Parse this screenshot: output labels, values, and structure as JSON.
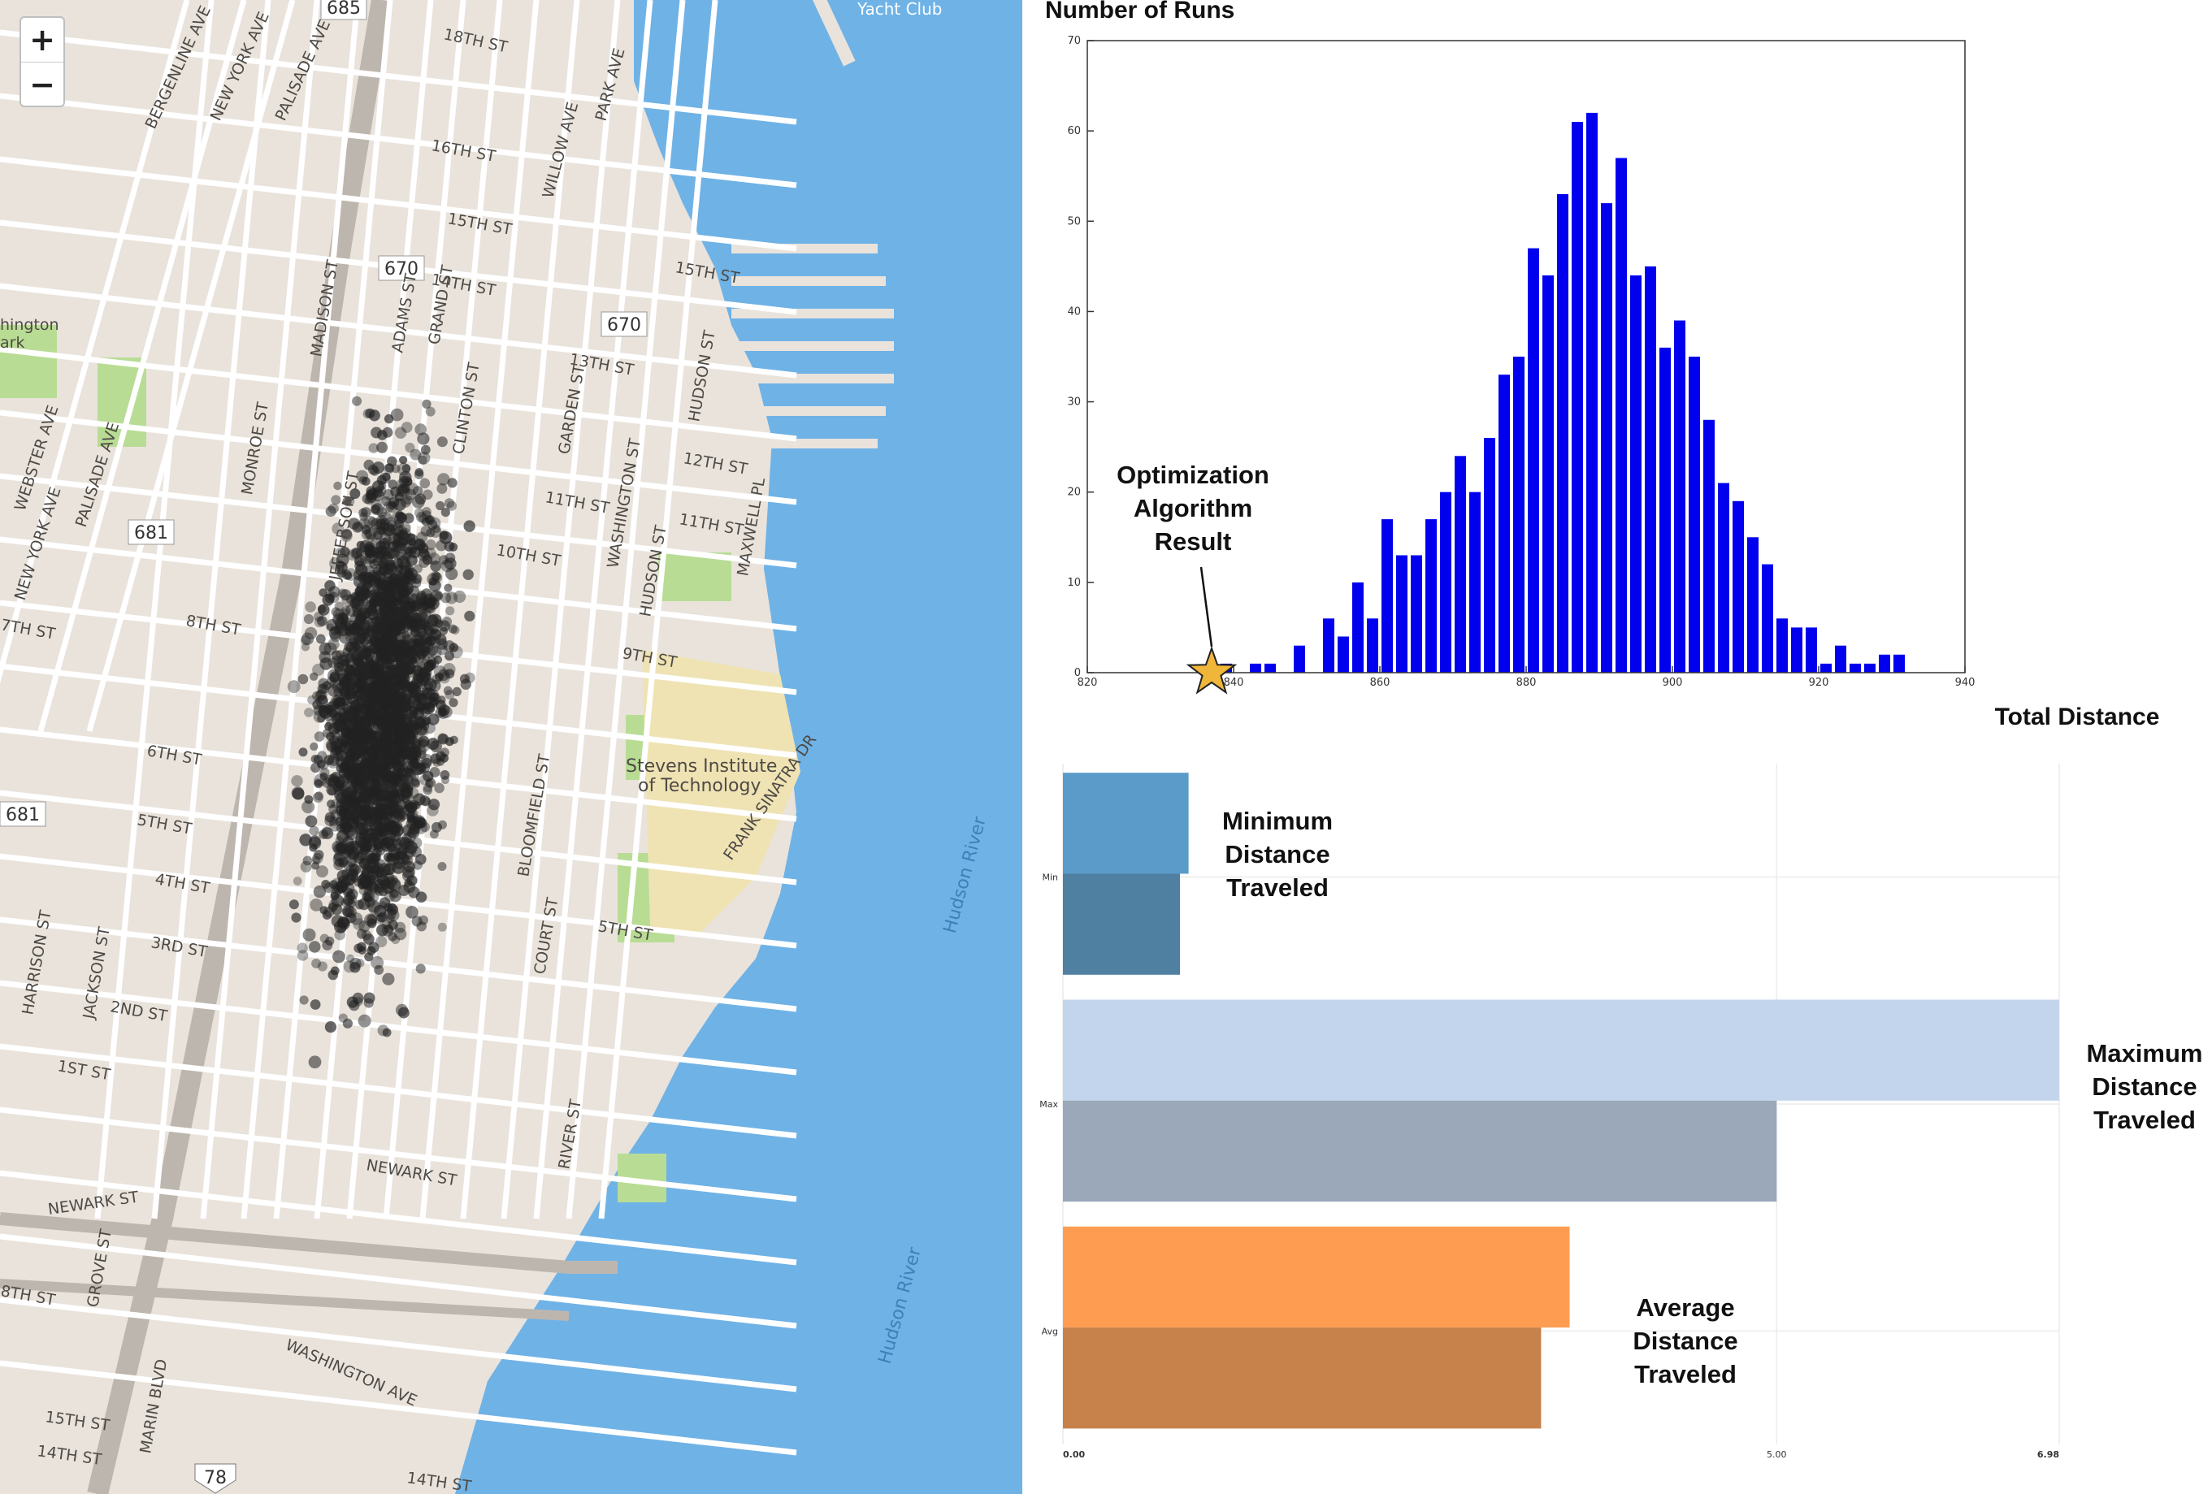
{
  "map": {
    "zoom_in_label": "+",
    "zoom_out_label": "−",
    "colors": {
      "water": "#6fb2e6",
      "land": "#e9e3dc",
      "park": "#b8dc94",
      "campus": "#efe3b4",
      "dots": "#222222"
    },
    "labels": {
      "yacht": "Yacht Club",
      "route685": "685",
      "route670a": "670",
      "route670b": "670",
      "route681a": "681",
      "route681b": "681",
      "route78": "78",
      "washington_park": "hington",
      "washington_park2": "ark",
      "stevens1": "Stevens Institute",
      "stevens2": "of Technology",
      "hudson_river1": "Hudson River",
      "hudson_river2": "Hudson River",
      "st18": "18TH ST",
      "st16": "16TH ST",
      "st15": "15TH ST",
      "st14": "14TH ST",
      "st13": "13TH ST",
      "st12": "12TH ST",
      "st11a": "11TH ST",
      "st11b": "11TH ST",
      "st10": "10TH ST",
      "st9": "9TH ST",
      "st8": "8TH ST",
      "st7": "7TH ST",
      "st6": "6TH ST",
      "st5": "5TH ST",
      "st4": "4TH ST",
      "st3": "3RD ST",
      "st2": "2ND ST",
      "st1": "1ST ST",
      "newark": "NEWARK ST",
      "newark2": "NEWARK ST",
      "st15w": "15TH ST",
      "st14w": "14TH ST",
      "st14e": "14TH ST",
      "st15e": "15TH ST",
      "st18w": "8TH ST",
      "washington_ave": "WASHINGTON AVE",
      "willow": "WILLOW AVE",
      "park": "PARK AVE",
      "madison": "MADISON ST",
      "adams": "ADAMS ST",
      "grand": "GRAND ST",
      "clinton": "CLINTON ST",
      "jefferson": "JEFFERSON ST",
      "monroe": "MONROE ST",
      "garden": "GARDEN ST",
      "hudson": "HUDSON ST",
      "hudson2": "HUDSON ST",
      "washington": "WASHINGTON ST",
      "bloomfield": "BLOOMFIELD ST",
      "court": "COURT ST",
      "river": "RIVER ST",
      "maxwell": "MAXWELL PL",
      "sinatra": "FRANK SINATRA DR",
      "harrison": "HARRISON ST",
      "jackson": "JACKSON ST",
      "grove": "GROVE ST",
      "marin": "MARIN BLVD",
      "bergenline": "BERGENLINE AVE",
      "newyork": "NEW YORK AVE",
      "palisade": "PALISADE AVE",
      "webster": "WEBSTER AVE",
      "palisade2": "PALISADE AVE",
      "newyork2": "NEW YORK AVE"
    }
  },
  "histogram": {
    "ylabel": "Number of Runs",
    "xlabel": "Total Distance",
    "annotation_lines": [
      "Optimization",
      "Algorithm",
      "Result"
    ],
    "bar_color": "#0000ee",
    "star_color": "#f0b63a"
  },
  "bars": {
    "annotations": {
      "min": [
        "Minimum",
        "Distance",
        "Traveled"
      ],
      "max": [
        "Maximum",
        "Distance",
        "Traveled"
      ],
      "avg": [
        "Average",
        "Distance",
        "Traveled"
      ]
    }
  },
  "chart_data": [
    {
      "type": "bar",
      "title": "",
      "xlabel": "Total Distance",
      "ylabel": "Number of Runs",
      "xlim": [
        820,
        940
      ],
      "ylim": [
        0,
        70
      ],
      "xticks": [
        "820",
        "840",
        "860",
        "880",
        "900",
        "920",
        "940"
      ],
      "yticks": [
        "0",
        "10",
        "20",
        "30",
        "40",
        "50",
        "60",
        "70"
      ],
      "bin_width": 2,
      "x": [
        833,
        837,
        839,
        841,
        843,
        845,
        847,
        849,
        851,
        853,
        855,
        857,
        859,
        861,
        863,
        865,
        867,
        869,
        871,
        873,
        875,
        877,
        879,
        881,
        883,
        885,
        887,
        889,
        891,
        893,
        895,
        897,
        899,
        901,
        903,
        905,
        907,
        909,
        911,
        913,
        915,
        917,
        919,
        921,
        923,
        925,
        927,
        929,
        931
      ],
      "values": [
        0,
        1,
        1,
        0,
        1,
        1,
        0,
        3,
        0,
        6,
        4,
        10,
        6,
        17,
        13,
        13,
        17,
        20,
        24,
        20,
        26,
        33,
        35,
        47,
        44,
        53,
        61,
        62,
        52,
        57,
        44,
        45,
        36,
        39,
        35,
        28,
        21,
        19,
        15,
        12,
        6,
        5,
        5,
        1,
        3,
        1,
        1,
        2,
        2
      ],
      "highlight_point": {
        "x": 837,
        "y": 0
      }
    },
    {
      "type": "bar",
      "orientation": "horizontal",
      "title": "",
      "categories": [
        "Min",
        "Max",
        "Avg"
      ],
      "xlim": [
        0,
        6.98
      ],
      "xticks": [
        "0.00",
        "5.00",
        "6.98"
      ],
      "series": [
        {
          "values": [
            0.88,
            6.98,
            3.55
          ],
          "colors": [
            "#5b9bc9",
            "#c3d5ed",
            "#fe9d52"
          ]
        },
        {
          "values": [
            0.82,
            5.0,
            3.35
          ],
          "colors": [
            "#4f7fa1",
            "#9aa8ba",
            "#c7824c"
          ]
        }
      ]
    }
  ]
}
